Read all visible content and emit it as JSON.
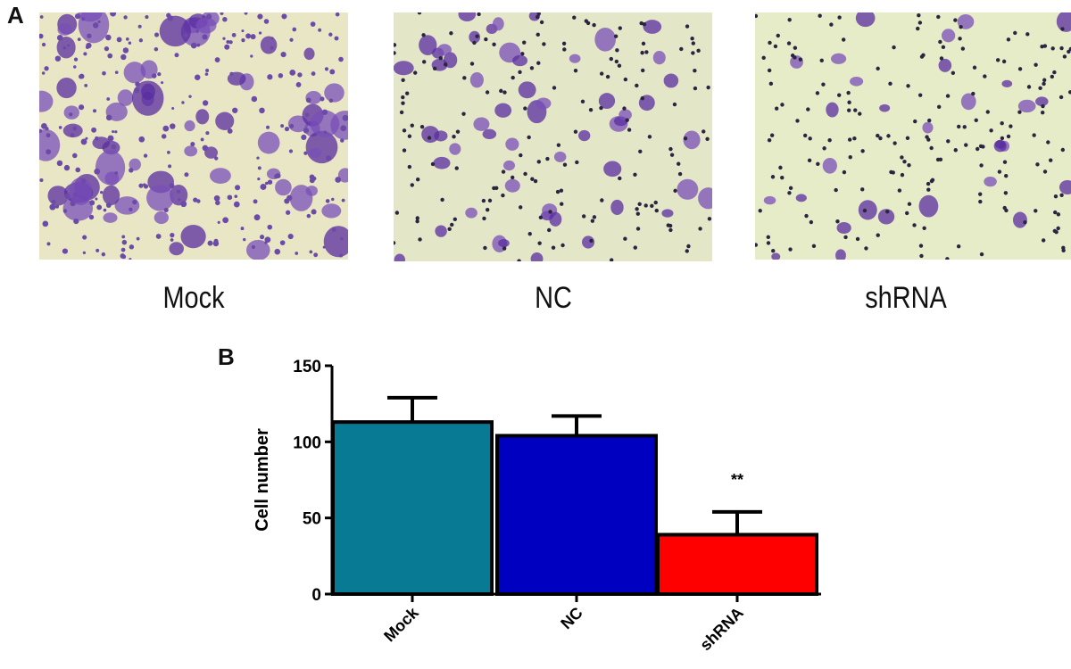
{
  "figure": {
    "panel_a_letter": "A",
    "panel_b_letter": "B",
    "micrographs": [
      {
        "label": "Mock",
        "density": "dense-confluent"
      },
      {
        "label": "NC",
        "density": "moderate"
      },
      {
        "label": "shRNA",
        "density": "sparse"
      }
    ]
  },
  "chart_data": {
    "type": "bar",
    "title": "",
    "xlabel": "",
    "ylabel": "Cell number",
    "ylim": [
      0,
      150
    ],
    "yticks": [
      0,
      50,
      100,
      150
    ],
    "categories": [
      "Mock",
      "NC",
      "shRNA"
    ],
    "values": [
      113,
      104,
      39
    ],
    "error_upper": [
      129,
      117,
      54
    ],
    "errors": [
      16,
      13,
      15
    ],
    "colors": [
      "#087A94",
      "#0000C0",
      "#FF0000"
    ],
    "annotations": [
      {
        "category": "shRNA",
        "text": "**"
      }
    ],
    "grid": false,
    "legend": null
  }
}
